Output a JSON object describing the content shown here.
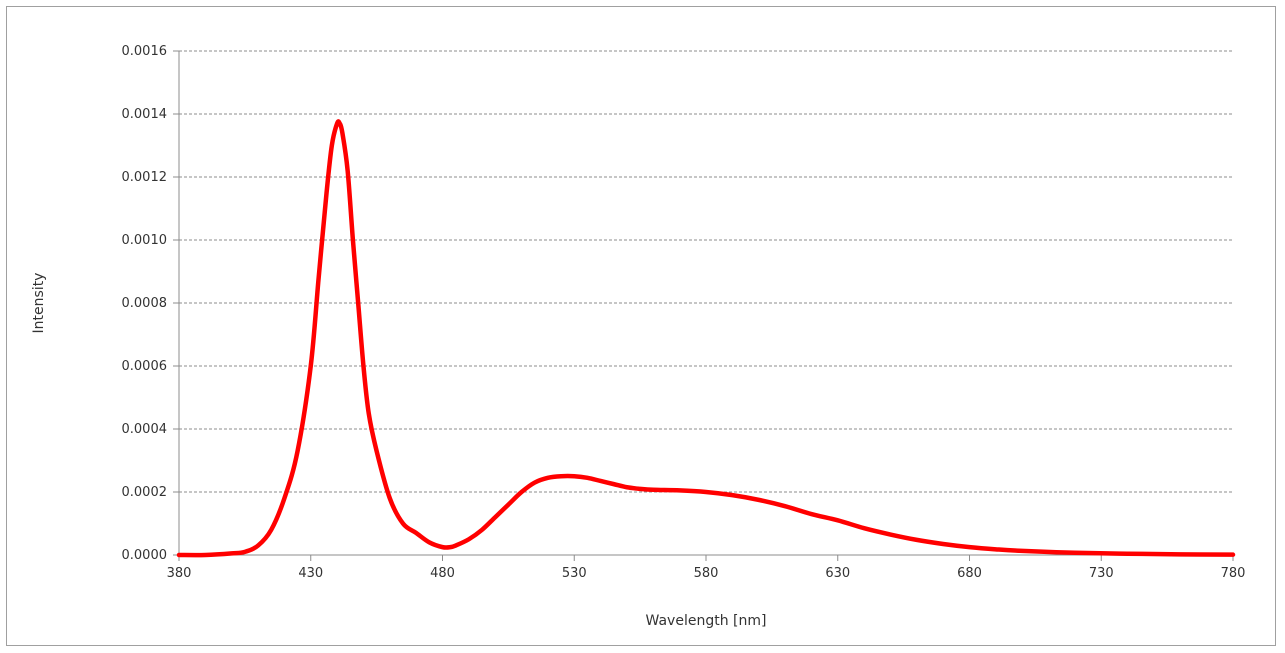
{
  "chart_data": {
    "type": "line",
    "title": "",
    "xlabel": "Wavelength [nm]",
    "ylabel": "Intensity",
    "xlim": [
      380,
      780
    ],
    "ylim": [
      0,
      0.0016
    ],
    "x_ticks": [
      "380",
      "430",
      "480",
      "530",
      "580",
      "630",
      "680",
      "730",
      "780"
    ],
    "y_ticks": [
      "0.0000",
      "0.0002",
      "0.0004",
      "0.0006",
      "0.0008",
      "0.0010",
      "0.0012",
      "0.0014",
      "0.0016"
    ],
    "grid": "horizontal-dashed",
    "legend": "none",
    "series": [
      {
        "color": "#ff0000",
        "x": [
          380,
          390,
          400,
          405,
          410,
          415,
          420,
          425,
          430,
          433,
          436,
          438,
          440,
          441,
          442,
          444,
          446,
          448,
          450,
          452,
          455,
          460,
          465,
          470,
          475,
          480,
          483,
          485,
          490,
          495,
          500,
          505,
          510,
          515,
          520,
          525,
          530,
          535,
          540,
          545,
          550,
          555,
          560,
          570,
          580,
          590,
          600,
          610,
          620,
          630,
          640,
          650,
          660,
          670,
          680,
          690,
          700,
          720,
          740,
          760,
          780
        ],
        "y": [
          0.0,
          0.0,
          5e-06,
          1e-05,
          3e-05,
          8e-05,
          0.00018,
          0.00033,
          0.0006,
          0.00088,
          0.00115,
          0.0013,
          0.00137,
          0.00137,
          0.00134,
          0.00122,
          0.001,
          0.0008,
          0.0006,
          0.00045,
          0.00033,
          0.00018,
          0.0001,
          7e-05,
          4e-05,
          2.5e-05,
          2.5e-05,
          3e-05,
          5e-05,
          8e-05,
          0.00012,
          0.00016,
          0.0002,
          0.00023,
          0.000245,
          0.00025,
          0.00025,
          0.000245,
          0.000235,
          0.000225,
          0.000215,
          0.00021,
          0.000207,
          0.000205,
          0.0002,
          0.00019,
          0.000175,
          0.000155,
          0.00013,
          0.00011,
          8.5e-05,
          6.5e-05,
          4.8e-05,
          3.5e-05,
          2.5e-05,
          1.8e-05,
          1.3e-05,
          7e-06,
          4e-06,
          2e-06,
          1e-06
        ]
      }
    ]
  }
}
